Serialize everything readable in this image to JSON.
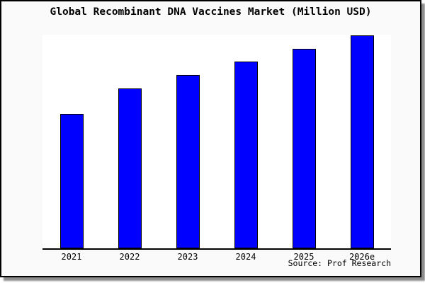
{
  "window": {
    "background_color": "#fafafa",
    "plot_background_color": "#ffffff",
    "border_color": "#000000",
    "shadow_color": "#777777"
  },
  "chart_data": {
    "type": "bar",
    "title": "Global Recombinant DNA Vaccines Market (Million USD)",
    "categories": [
      "2021",
      "2022",
      "2023",
      "2024",
      "2025",
      "2026e"
    ],
    "values": [
      190,
      226,
      245,
      264,
      282,
      301
    ],
    "value_note": "no y-axis or data labels shown; values are relative bar heights in pixels from the baseline",
    "xlabel": "",
    "ylabel": "",
    "y_axis_visible": false,
    "gridlines": false,
    "legend": null,
    "bar_color": "#0000ff",
    "bar_border_color": "#000000",
    "source": "Source: Prof Research"
  }
}
